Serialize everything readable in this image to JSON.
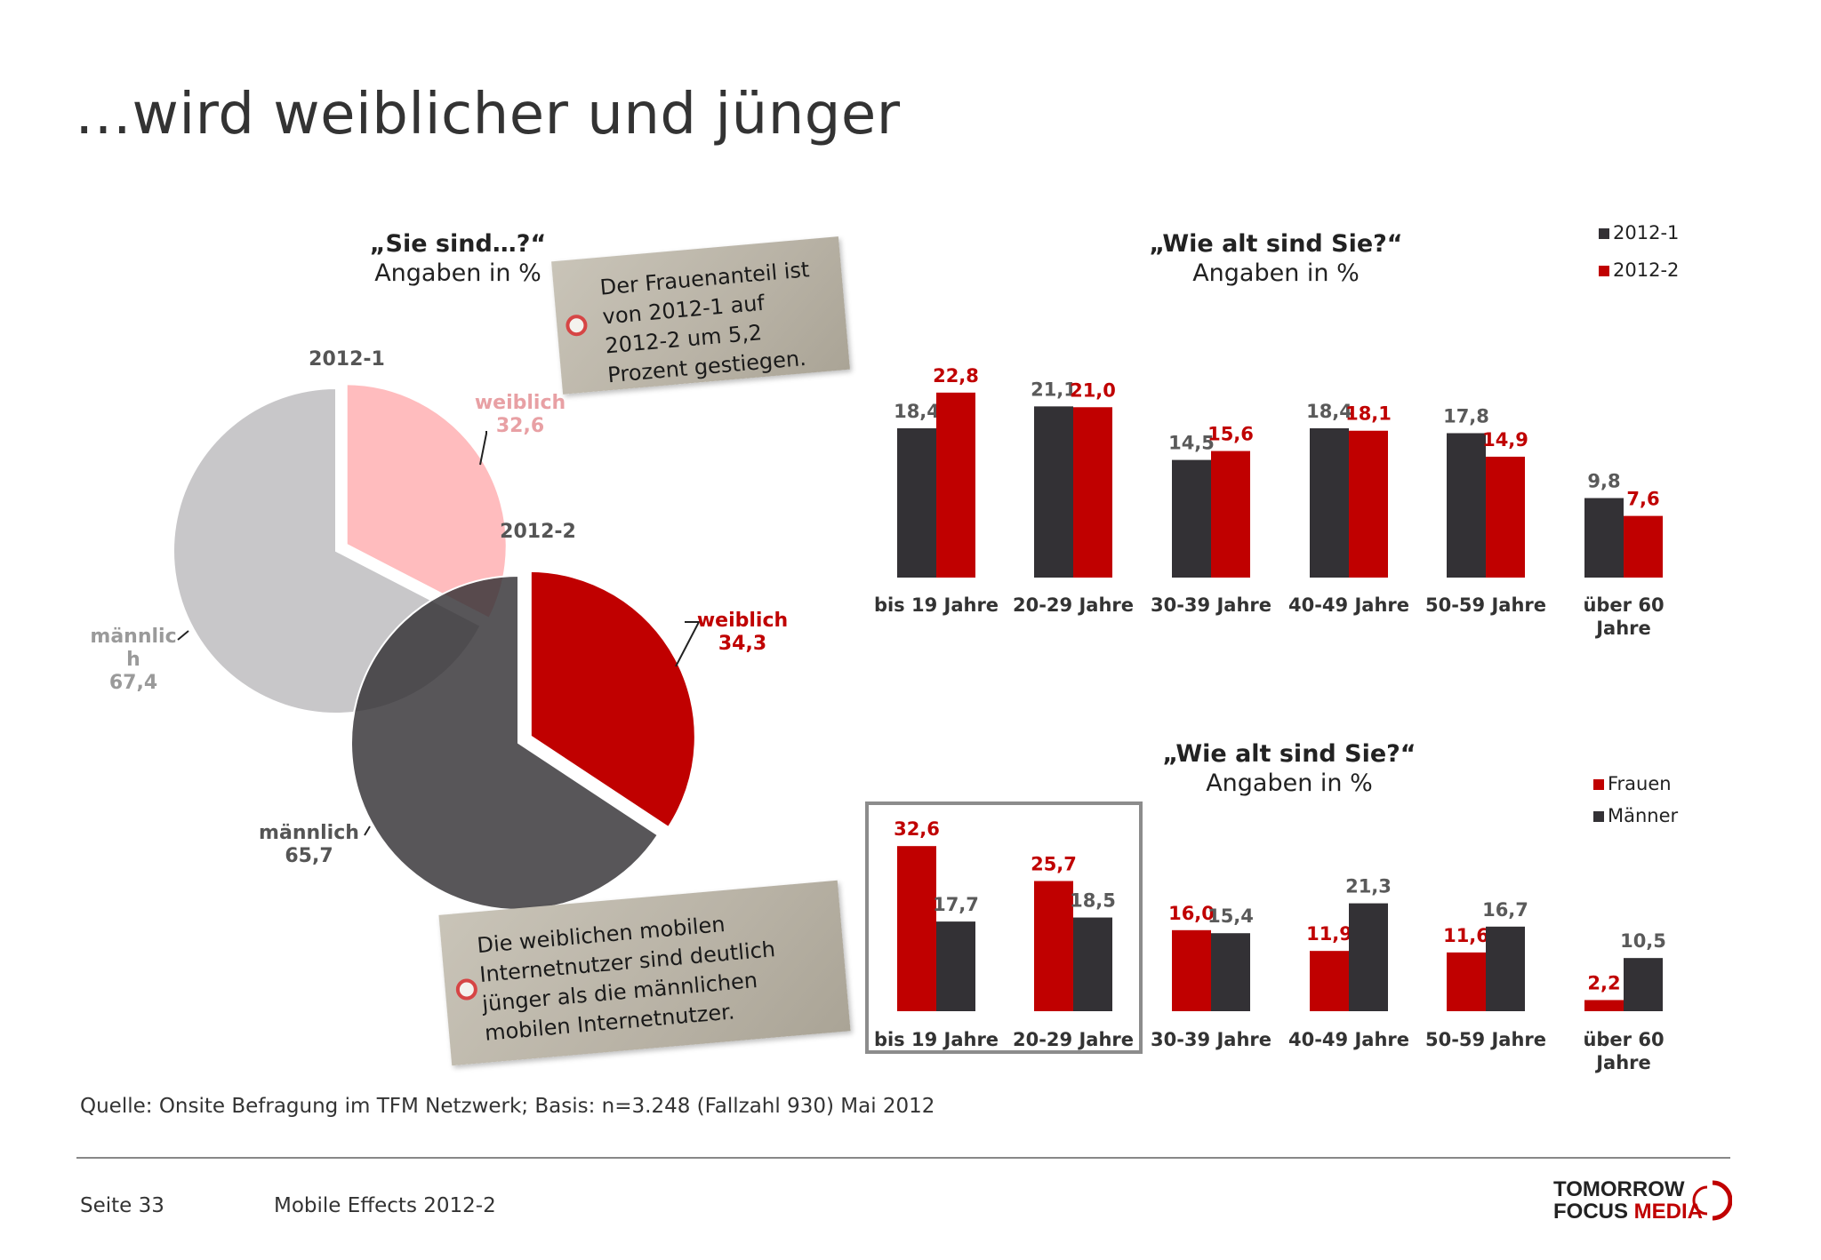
{
  "title": "…wird weiblicher und jünger",
  "colors": {
    "dark": "#333135",
    "red": "#c00000",
    "lightgray": "#c8c7c9",
    "pink": "#ffb8bb"
  },
  "tag_top": {
    "text": "Der Frauenanteil ist von 2012-1 auf 2012-2 um 5,2 Prozent gestiegen."
  },
  "tag_bottom": {
    "text": "Die weiblichen mobilen Internetnutzer sind deutlich jünger als die männlichen mobilen Internetnutzer."
  },
  "source": "Quelle: Onsite Befragung im TFM Netzwerk; Basis: n=3.248 (Fallzahl 930) Mai 2012",
  "footer": {
    "page": "Seite 33",
    "report": "Mobile Effects 2012-2"
  },
  "logo": {
    "line1": "TOMORROW",
    "line2a": "FOCUS ",
    "line2b": "MEDIA"
  },
  "chart_data": [
    {
      "type": "pie",
      "title": "„Sie sind…?“",
      "subtitle": "Angaben in %",
      "pies": [
        {
          "name": "2012-1",
          "labels": [
            "weiblich",
            "männlich"
          ],
          "label_display": [
            "weiblich",
            "männlic h"
          ],
          "values": [
            32.6,
            67.4
          ],
          "value_labels": [
            "32,6",
            "67,4"
          ]
        },
        {
          "name": "2012-2",
          "labels": [
            "weiblich",
            "männlich"
          ],
          "values": [
            34.3,
            65.7
          ],
          "value_labels": [
            "34,3",
            "65,7"
          ]
        }
      ]
    },
    {
      "type": "bar",
      "title": "„Wie alt sind Sie?“",
      "subtitle": "Angaben in %",
      "categories": [
        "bis 19 Jahre",
        "20-29 Jahre",
        "30-39 Jahre",
        "40-49 Jahre",
        "50-59 Jahre",
        "über 60 Jahre"
      ],
      "category_display": [
        [
          "bis 19 Jahre"
        ],
        [
          "20-29 Jahre"
        ],
        [
          "30-39 Jahre"
        ],
        [
          "40-49 Jahre"
        ],
        [
          "50-59 Jahre"
        ],
        [
          "über 60",
          "Jahre"
        ]
      ],
      "series": [
        {
          "name": "2012-1",
          "values": [
            18.4,
            21.1,
            14.5,
            18.4,
            17.8,
            9.8
          ],
          "labels": [
            "18,4",
            "21,1",
            "14,5",
            "18,4",
            "17,8",
            "9,8"
          ]
        },
        {
          "name": "2012-2",
          "values": [
            22.8,
            21.0,
            15.6,
            18.1,
            14.9,
            7.6
          ],
          "labels": [
            "22,8",
            "21,0",
            "15,6",
            "18,1",
            "14,9",
            "7,6"
          ]
        }
      ],
      "legend": "top-right"
    },
    {
      "type": "bar",
      "title": "„Wie alt sind Sie?“",
      "subtitle": "Angaben in %",
      "categories": [
        "bis 19 Jahre",
        "20-29 Jahre",
        "30-39 Jahre",
        "40-49 Jahre",
        "50-59 Jahre",
        "über 60 Jahre"
      ],
      "category_display": [
        [
          "bis 19 Jahre"
        ],
        [
          "20-29 Jahre"
        ],
        [
          "30-39 Jahre"
        ],
        [
          "40-49 Jahre"
        ],
        [
          "50-59 Jahre"
        ],
        [
          "über 60",
          "Jahre"
        ]
      ],
      "series": [
        {
          "name": "Frauen",
          "values": [
            32.6,
            25.7,
            16.0,
            11.9,
            11.6,
            2.2
          ],
          "labels": [
            "32,6",
            "25,7",
            "16,0",
            "11,9",
            "11,6",
            "2,2"
          ]
        },
        {
          "name": "Männer",
          "values": [
            17.7,
            18.5,
            15.4,
            21.3,
            16.7,
            10.5
          ],
          "labels": [
            "17,7",
            "18,5",
            "15,4",
            "21,3",
            "16,7",
            "10,5"
          ]
        }
      ],
      "highlight": [
        "bis 19 Jahre",
        "20-29 Jahre"
      ],
      "legend": "top-right"
    }
  ]
}
